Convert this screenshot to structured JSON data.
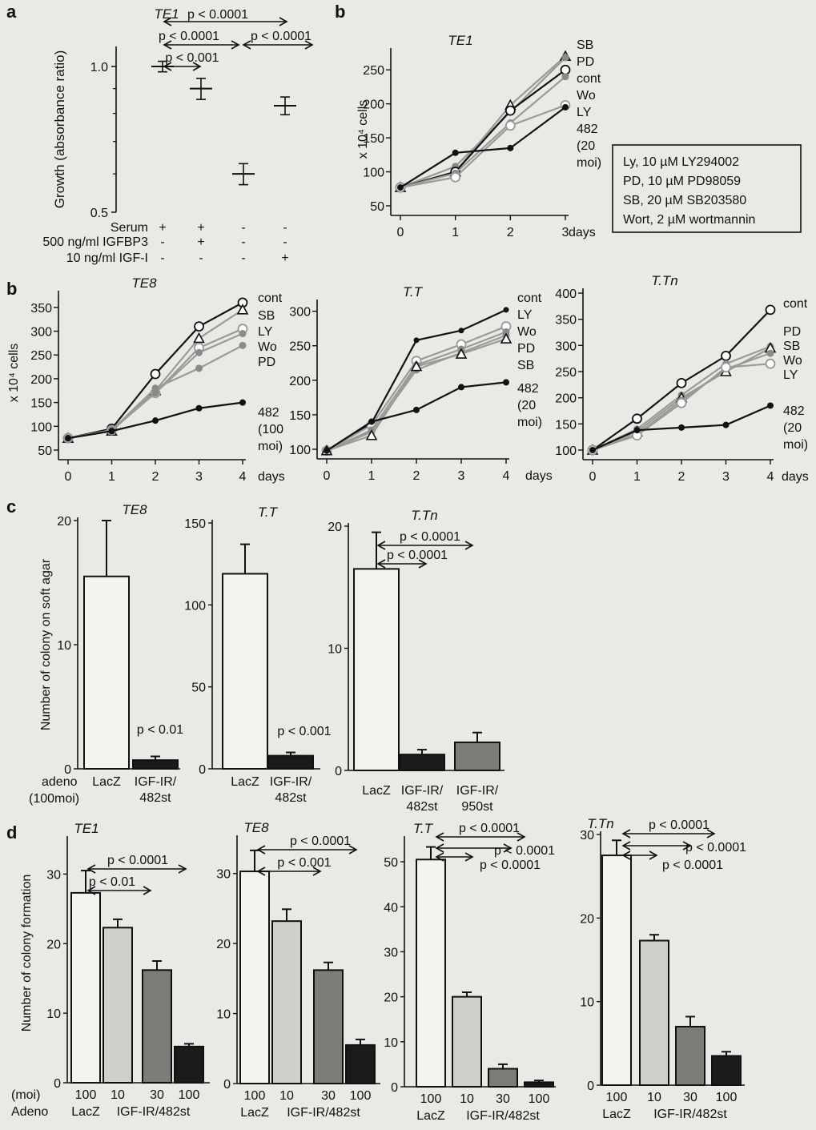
{
  "panel_letters": [
    "a",
    "b",
    "b",
    "c",
    "d"
  ],
  "colors": {
    "background": "#e9e9e6",
    "ink": "#111111",
    "bar_light": "#f3f3f0",
    "bar_mid": "#cfcfcc",
    "bar_dark": "#7c7c79",
    "bar_black": "#1a1a1a",
    "line_gray": "#9a9a98"
  },
  "chart_data": [
    {
      "id": "a_TE1",
      "panel": "a",
      "type": "scatter",
      "title": "TE1",
      "ylabel": "Growth (absorbance ratio)",
      "ylim": [
        0.5,
        1.1
      ],
      "log_y": true,
      "yticks": [
        "1.0",
        "0.5"
      ],
      "row_labels": [
        "Serum",
        "500 ng/ml IGFBP3",
        "10 ng/ml IGF-I"
      ],
      "rows": [
        [
          "+",
          "+",
          "-",
          "-"
        ],
        [
          "-",
          "+",
          "-",
          "-"
        ],
        [
          "-",
          "-",
          "-",
          "+"
        ]
      ],
      "values": [
        1.0,
        0.9,
        0.6,
        0.83
      ],
      "errors": [
        0.025,
        0.045,
        0.03,
        0.035
      ],
      "annotations": [
        "p < 0.0001",
        "p < 0.0001",
        "p < 0.0001",
        "p < 0.001"
      ]
    },
    {
      "id": "b_TE1",
      "panel": "b",
      "type": "line",
      "title": "TE1",
      "ylabel": "x 10⁴ cells",
      "xlabel": "days",
      "xlim": [
        0,
        3
      ],
      "ylim": [
        50,
        275
      ],
      "xticks": [
        "0",
        "1",
        "2",
        "3"
      ],
      "yticks": [
        "50",
        "100",
        "150",
        "200",
        "250"
      ],
      "series": [
        {
          "name": "SB",
          "marker": "triangle",
          "values": [
            77,
            100,
            198,
            270
          ]
        },
        {
          "name": "PD",
          "marker": "gray-dot",
          "values": [
            77,
            108,
            188,
            268
          ]
        },
        {
          "name": "cont",
          "marker": "open-circle",
          "values": [
            77,
            100,
            190,
            250
          ]
        },
        {
          "name": "Wo",
          "marker": "gray-dot",
          "values": [
            77,
            98,
            172,
            240
          ]
        },
        {
          "name": "LY",
          "marker": "open-gray",
          "values": [
            77,
            92,
            168,
            198
          ]
        },
        {
          "name": "482\n(20\nmoi)",
          "marker": "black-dot",
          "values": [
            77,
            128,
            135,
            195
          ]
        }
      ],
      "legend": [
        "Ly, 10 µM LY294002",
        "PD, 10 µM PD98059",
        "SB, 20 µM SB203580",
        "Wort, 2 µM wortmannin"
      ]
    },
    {
      "id": "b_TE8",
      "panel": "b",
      "type": "line",
      "title": "TE8",
      "ylabel": "x 10⁴ cells",
      "xlabel": "days",
      "xlim": [
        0,
        4
      ],
      "ylim": [
        50,
        375
      ],
      "xticks": [
        "0",
        "1",
        "2",
        "3",
        "4"
      ],
      "yticks": [
        "50",
        "100",
        "150",
        "200",
        "250",
        "300",
        "350"
      ],
      "series": [
        {
          "name": "cont",
          "marker": "open-circle",
          "values": [
            75,
            95,
            210,
            310,
            360
          ]
        },
        {
          "name": "SB",
          "marker": "triangle",
          "values": [
            75,
            90,
            175,
            285,
            345
          ]
        },
        {
          "name": "LY",
          "marker": "open-gray",
          "values": [
            75,
            92,
            170,
            265,
            305
          ]
        },
        {
          "name": "Wo",
          "marker": "gray-dot",
          "values": [
            75,
            92,
            170,
            255,
            295
          ]
        },
        {
          "name": "PD",
          "marker": "gray-dot",
          "values": [
            75,
            92,
            180,
            222,
            270
          ]
        },
        {
          "name": "482\n(100\nmoi)",
          "marker": "black-dot",
          "values": [
            75,
            90,
            112,
            138,
            150
          ]
        }
      ]
    },
    {
      "id": "b_TT",
      "panel": "b",
      "type": "line",
      "title": "T.T",
      "xlabel": "days",
      "xlim": [
        0,
        4
      ],
      "ylim": [
        100,
        310
      ],
      "xticks": [
        "0",
        "1",
        "2",
        "3",
        "4"
      ],
      "yticks": [
        "100",
        "150",
        "200",
        "250",
        "300"
      ],
      "series": [
        {
          "name": "cont",
          "marker": "black-line",
          "values": [
            98,
            138,
            258,
            272,
            302
          ]
        },
        {
          "name": "LY",
          "marker": "open-gray",
          "values": [
            98,
            135,
            228,
            252,
            278
          ]
        },
        {
          "name": "Wo",
          "marker": "gray-dot",
          "values": [
            98,
            128,
            222,
            245,
            270
          ]
        },
        {
          "name": "PD",
          "marker": "gray-dot",
          "values": [
            98,
            125,
            215,
            240,
            265
          ]
        },
        {
          "name": "SB",
          "marker": "triangle",
          "values": [
            98,
            120,
            220,
            238,
            260
          ]
        },
        {
          "name": "482\n(20\nmoi)",
          "marker": "black-dot",
          "values": [
            98,
            140,
            157,
            190,
            197
          ]
        }
      ]
    },
    {
      "id": "b_TTn",
      "panel": "b",
      "type": "line",
      "title": "T.Tn",
      "xlabel": "days",
      "xlim": [
        0,
        4
      ],
      "ylim": [
        100,
        400
      ],
      "xticks": [
        "0",
        "1",
        "2",
        "3",
        "4"
      ],
      "yticks": [
        "100",
        "150",
        "200",
        "250",
        "300",
        "350",
        "400"
      ],
      "series": [
        {
          "name": "cont",
          "marker": "open-circle",
          "values": [
            100,
            160,
            228,
            280,
            368
          ]
        },
        {
          "name": "PD",
          "marker": "gray-dot",
          "values": [
            100,
            140,
            205,
            265,
            298
          ]
        },
        {
          "name": "SB",
          "marker": "triangle",
          "values": [
            100,
            135,
            200,
            250,
            295
          ]
        },
        {
          "name": "Wo",
          "marker": "gray-dot",
          "values": [
            100,
            130,
            195,
            255,
            285
          ]
        },
        {
          "name": "LY",
          "marker": "open-gray",
          "values": [
            100,
            128,
            190,
            258,
            265
          ]
        },
        {
          "name": "482\n(20\nmoi)",
          "marker": "black-dot",
          "values": [
            100,
            138,
            143,
            148,
            185
          ]
        }
      ]
    },
    {
      "id": "c_TE8",
      "panel": "c",
      "type": "bar",
      "title": "TE8",
      "ylabel": "Number of colony on soft agar",
      "ylim": [
        0,
        20
      ],
      "yticks": [
        "0",
        "10",
        "20"
      ],
      "categories": [
        "LacZ",
        "IGF-IR/\n482st"
      ],
      "values": [
        15.5,
        0.7
      ],
      "errors": [
        4.5,
        0.3
      ],
      "fills": [
        "light",
        "black"
      ],
      "annotations": [
        "p < 0.01"
      ],
      "row_labels": [
        "adeno",
        "(100moi)"
      ]
    },
    {
      "id": "c_TT",
      "panel": "c",
      "type": "bar",
      "title": "T.T",
      "ylim": [
        0,
        150
      ],
      "yticks": [
        "0",
        "50",
        "100",
        "150"
      ],
      "categories": [
        "LacZ",
        "IGF-IR/\n482st"
      ],
      "values": [
        119,
        8
      ],
      "errors": [
        18,
        2
      ],
      "fills": [
        "light",
        "black"
      ],
      "annotations": [
        "p < 0.001"
      ]
    },
    {
      "id": "c_TTn",
      "panel": "c",
      "type": "bar",
      "title": "T.Tn",
      "ylim": [
        0,
        20
      ],
      "yticks": [
        "0",
        "10",
        "20"
      ],
      "categories": [
        "LacZ",
        "IGF-IR/\n482st",
        "IGF-IR/\n950st"
      ],
      "values": [
        16.5,
        1.3,
        2.3
      ],
      "errors": [
        3,
        0.4,
        0.8
      ],
      "fills": [
        "light",
        "black",
        "dark"
      ],
      "annotations": [
        "p < 0.0001",
        "p < 0.0001"
      ]
    },
    {
      "id": "d_TE1",
      "panel": "d",
      "type": "bar",
      "title": "TE1",
      "ylabel": "Number of colony formation",
      "ylim": [
        0,
        35
      ],
      "yticks": [
        "0",
        "10",
        "20",
        "30"
      ],
      "categories": [
        "100",
        "10",
        "30",
        "100"
      ],
      "values": [
        27.3,
        22.3,
        16.2,
        5.2
      ],
      "errors": [
        3.2,
        1.2,
        1.3,
        0.4
      ],
      "fills": [
        "light",
        "mid",
        "dark",
        "black"
      ],
      "annotations": [
        "p < 0.0001",
        "p < 0.01"
      ],
      "row_labels": [
        "(moi)",
        "Adeno"
      ],
      "group_labels": [
        "LacZ",
        "IGF-IR/482st"
      ]
    },
    {
      "id": "d_TE8",
      "panel": "d",
      "type": "bar",
      "title": "TE8",
      "ylim": [
        0,
        35
      ],
      "yticks": [
        "0",
        "10",
        "20",
        "30"
      ],
      "categories": [
        "100",
        "10",
        "30",
        "100"
      ],
      "values": [
        30.3,
        23.2,
        16.2,
        5.5
      ],
      "errors": [
        3.0,
        1.7,
        1.1,
        0.8
      ],
      "fills": [
        "light",
        "mid",
        "dark",
        "black"
      ],
      "annotations": [
        "p < 0.0001",
        "p < 0.001"
      ],
      "group_labels": [
        "LacZ",
        "IGF-IR/482st"
      ]
    },
    {
      "id": "d_TT",
      "panel": "d",
      "type": "bar",
      "title": "T.T",
      "ylim": [
        0,
        55
      ],
      "yticks": [
        "0",
        "10",
        "20",
        "30",
        "40",
        "50"
      ],
      "categories": [
        "100",
        "10",
        "30",
        "100"
      ],
      "values": [
        50.5,
        20,
        4,
        1
      ],
      "errors": [
        2.8,
        1.0,
        1.0,
        0.4
      ],
      "fills": [
        "light",
        "mid",
        "dark",
        "black"
      ],
      "annotations": [
        "p < 0.0001",
        "p < 0.0001",
        "p < 0.0001"
      ],
      "group_labels": [
        "LacZ",
        "IGF-IR/482st"
      ]
    },
    {
      "id": "d_TTn",
      "panel": "d",
      "type": "bar",
      "title": "T.Tn",
      "ylim": [
        0,
        30
      ],
      "yticks": [
        "0",
        "10",
        "20",
        "30"
      ],
      "categories": [
        "100",
        "10",
        "30",
        "100"
      ],
      "values": [
        27.5,
        17.3,
        7,
        3.5
      ],
      "errors": [
        1.8,
        0.7,
        1.2,
        0.5
      ],
      "fills": [
        "light",
        "mid",
        "dark",
        "black"
      ],
      "annotations": [
        "p < 0.0001",
        "p < 0.0001",
        "p < 0.0001"
      ],
      "group_labels": [
        "LacZ",
        "IGF-IR/482st"
      ]
    }
  ]
}
